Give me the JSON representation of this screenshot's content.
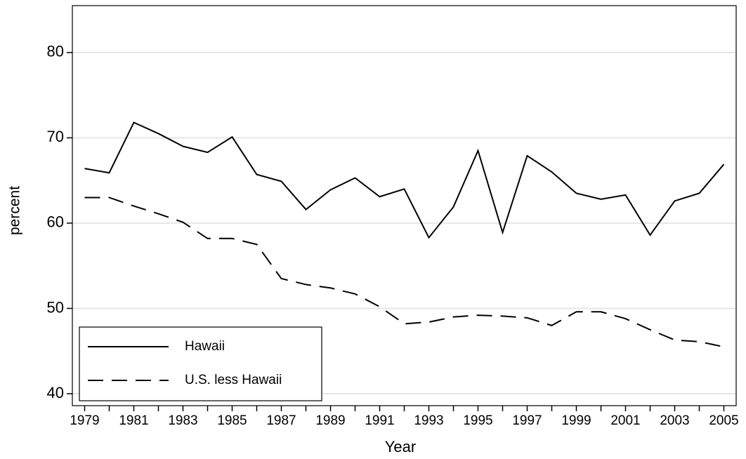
{
  "chart_data": {
    "type": "line",
    "xlabel": "Year",
    "ylabel": "percent",
    "x": [
      1979,
      1980,
      1981,
      1982,
      1983,
      1984,
      1985,
      1986,
      1987,
      1988,
      1989,
      1990,
      1991,
      1992,
      1993,
      1994,
      1995,
      1996,
      1997,
      1998,
      1999,
      2000,
      2001,
      2002,
      2003,
      2004,
      2005
    ],
    "series": [
      {
        "name": "Hawaii",
        "color": "#000000",
        "dash": "solid",
        "values": [
          66.4,
          65.9,
          71.8,
          70.5,
          69.0,
          68.3,
          70.1,
          65.7,
          64.9,
          61.6,
          63.9,
          65.3,
          63.1,
          64.0,
          58.3,
          61.9,
          68.5,
          58.9,
          67.9,
          66.0,
          63.5,
          62.8,
          63.3,
          58.6,
          62.6,
          63.5,
          66.9
        ]
      },
      {
        "name": "U.S. less Hawaii",
        "color": "#000000",
        "dash": "dashed",
        "values": [
          63.0,
          63.0,
          62.0,
          61.1,
          60.1,
          58.2,
          58.2,
          57.5,
          53.5,
          52.8,
          52.4,
          51.7,
          50.2,
          48.2,
          48.4,
          49.0,
          49.2,
          49.1,
          48.9,
          48.0,
          49.6,
          49.6,
          48.8,
          47.5,
          46.3,
          46.1,
          45.5
        ]
      }
    ],
    "xlim": [
      1978.5,
      2005.5
    ],
    "xticks": [
      1979,
      1981,
      1983,
      1985,
      1987,
      1989,
      1991,
      1993,
      1995,
      1997,
      1999,
      2001,
      2003,
      2005
    ],
    "xminorticks": [
      1980,
      1982,
      1984,
      1986,
      1988,
      1990,
      1992,
      1994,
      1996,
      1998,
      2000,
      2002,
      2004
    ],
    "ylim": [
      38.6,
      85.5
    ],
    "yticks": [
      40,
      50,
      60,
      70,
      80
    ],
    "grid": true,
    "legend": "bottom-left"
  }
}
